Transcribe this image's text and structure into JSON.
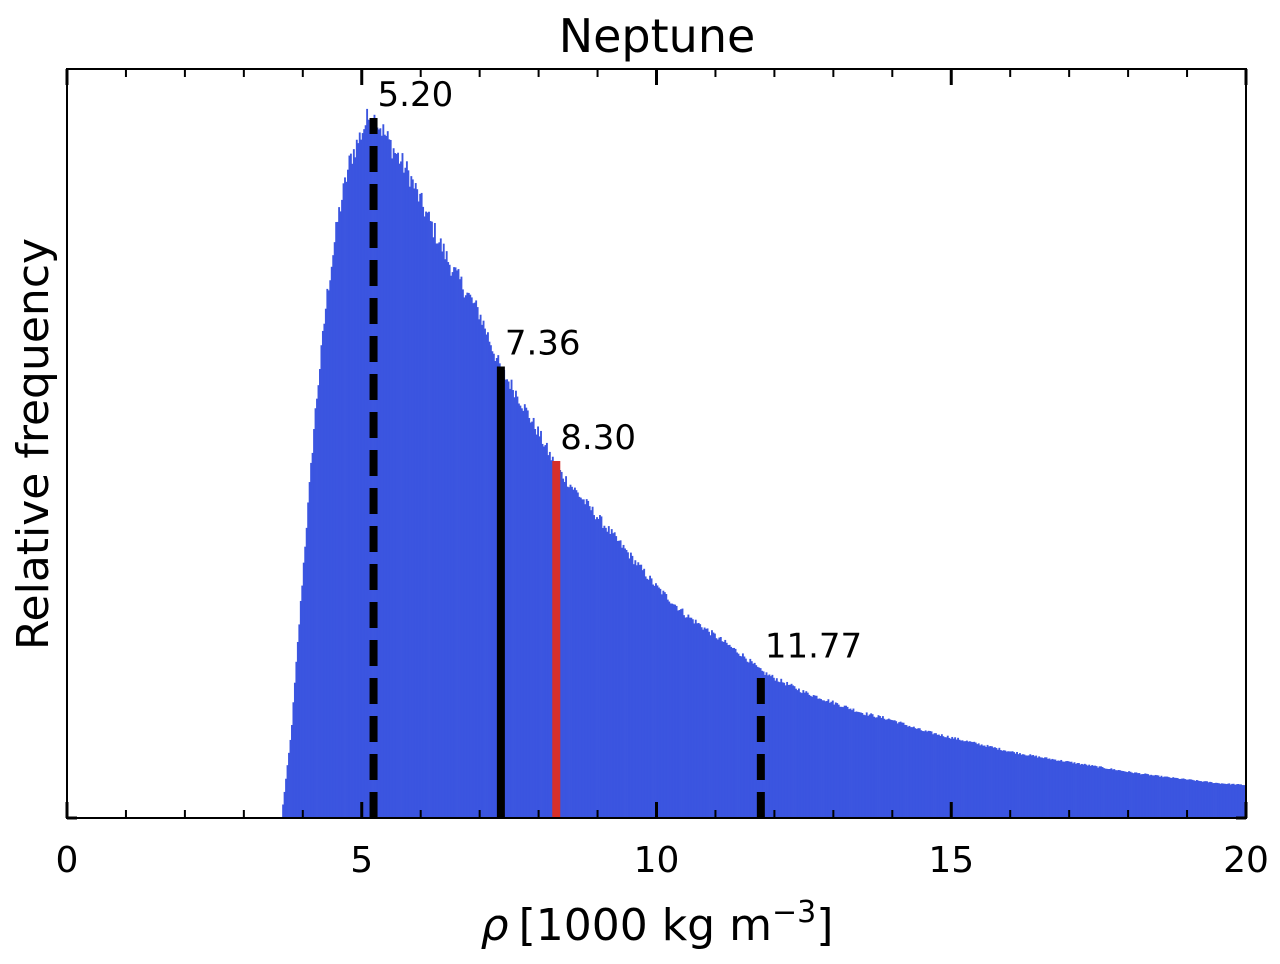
{
  "chart_data": {
    "type": "bar",
    "title": "Neptune",
    "xlabel_symbol": "ρ",
    "xlabel_units": "[1000 kg m",
    "xlabel_exponent": "−3",
    "xlabel_close": "]",
    "ylabel": "Relative frequency",
    "xlim": [
      0,
      20
    ],
    "ylim": [
      0,
      1.07
    ],
    "xticks": [
      0,
      5,
      10,
      15,
      20
    ],
    "xtick_labels": [
      "0",
      "5",
      "10",
      "15",
      "20"
    ],
    "grid": false,
    "histogram_shape": {
      "description_points_x": [
        3.65,
        3.8,
        4.0,
        4.2,
        4.4,
        4.6,
        4.8,
        5.0,
        5.1,
        5.2,
        5.3,
        5.5,
        5.8,
        6.0,
        6.5,
        7.0,
        7.36,
        7.6,
        8.0,
        8.3,
        8.6,
        9.0,
        9.5,
        10.0,
        10.5,
        11.0,
        11.5,
        11.77,
        12.0,
        12.5,
        13.0,
        13.5,
        14.0,
        14.5,
        15.0,
        15.5,
        16.0,
        16.5,
        17.0,
        17.5,
        18.0,
        18.5,
        19.0,
        19.5,
        20.0
      ],
      "description_points_y": [
        0.01,
        0.12,
        0.35,
        0.57,
        0.74,
        0.86,
        0.94,
        0.98,
        1.0,
        1.0,
        0.99,
        0.96,
        0.92,
        0.88,
        0.79,
        0.72,
        0.64,
        0.61,
        0.55,
        0.5,
        0.47,
        0.43,
        0.38,
        0.33,
        0.29,
        0.26,
        0.23,
        0.21,
        0.2,
        0.18,
        0.165,
        0.15,
        0.14,
        0.125,
        0.115,
        0.105,
        0.095,
        0.087,
        0.08,
        0.073,
        0.066,
        0.06,
        0.055,
        0.05,
        0.047
      ],
      "color": "#3b55e0"
    },
    "vlines": [
      {
        "x": 5.2,
        "label": "5.20",
        "height": 1.0,
        "style": "dashed",
        "color": "#000000"
      },
      {
        "x": 7.36,
        "label": "7.36",
        "height": 0.645,
        "style": "solid",
        "color": "#000000"
      },
      {
        "x": 8.3,
        "label": "8.30",
        "height": 0.51,
        "style": "solid",
        "color": "#d7302a"
      },
      {
        "x": 11.77,
        "label": "11.77",
        "height": 0.212,
        "style": "dashed",
        "color": "#000000"
      }
    ]
  }
}
